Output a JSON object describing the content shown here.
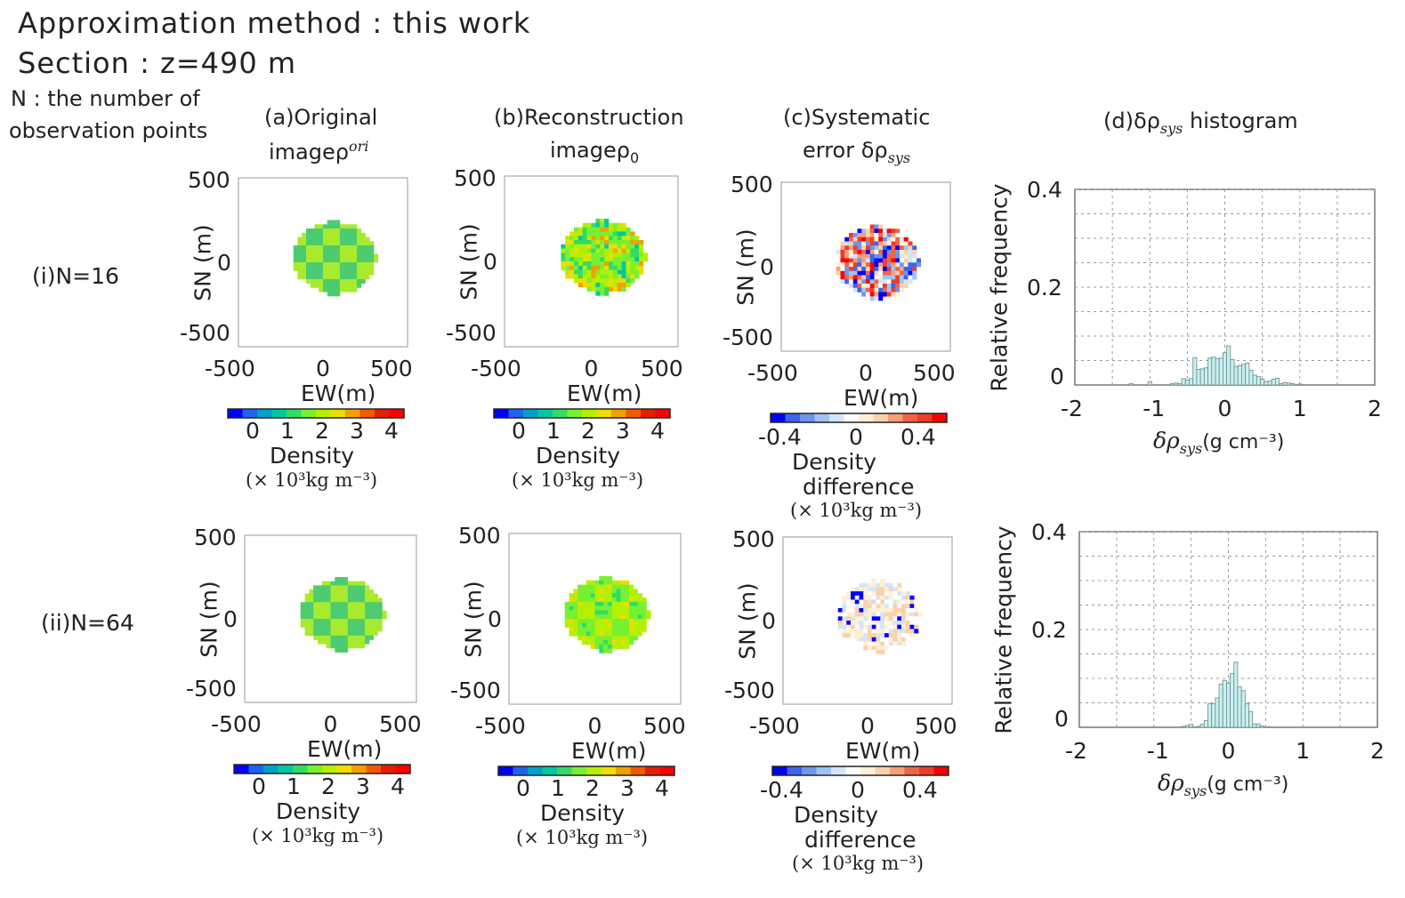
{
  "header": {
    "line1": "Approximation method :  this work",
    "line2": "Section : z=490 m",
    "n_note_1": "N :  the number of",
    "n_note_2": "observation points"
  },
  "columns": {
    "a_1": "(a)Original",
    "a_2": "imageρ",
    "a_sup": "ori",
    "b_1": "(b)Reconstruction",
    "b_2": "imageρ",
    "b_sub": "0",
    "c_1": "(c)Systematic",
    "c_2": "error δρ",
    "c_sub": "sys",
    "d_1": "(d)δρ",
    "d_sub": "sys",
    "d_2": " histogram"
  },
  "rows": [
    "(i)N=16",
    "(ii)N=64"
  ],
  "map_axes": {
    "ylabel": "SN (m)",
    "xlabel": "EW(m)",
    "ticks": [
      "-500",
      "0",
      "500"
    ]
  },
  "colorbars": {
    "density": {
      "ticks": [
        "0",
        "1",
        "2",
        "3",
        "4"
      ],
      "label": "Density",
      "unit": "(× 10³kg  m⁻³)",
      "colors": [
        "#0000ff",
        "#1e64f0",
        "#00a0c8",
        "#00c8a0",
        "#32dc64",
        "#78f032",
        "#b4f000",
        "#f0dc00",
        "#f0a000",
        "#f05a00",
        "#e61e00",
        "#ff0000"
      ]
    },
    "difference": {
      "ticks": [
        "-0.4",
        "0",
        "0.4"
      ],
      "label_1": "Density",
      "label_2": "difference",
      "unit": "(× 10³kg  m⁻³)",
      "colors": [
        "#0000ff",
        "#3c64f0",
        "#6e96f0",
        "#a0c3f5",
        "#d2e6fa",
        "#ffffff",
        "#fff0d2",
        "#fad2aa",
        "#f5a078",
        "#f06446",
        "#f03c28",
        "#ff0000"
      ]
    }
  },
  "chart_data": [
    {
      "type": "bar",
      "title": "(d)δρsys histogram (i)N=16",
      "xlabel": "δρsys(g cm⁻³)",
      "ylabel": "Relative frequency",
      "xlim": [
        -2,
        2
      ],
      "ylim": [
        0,
        0.4
      ],
      "xticks": [
        "-2",
        "-1",
        "0",
        "1",
        "2"
      ],
      "yticks": [
        "0",
        "0.2",
        "0.4"
      ],
      "grid": true,
      "bin_width": 0.05,
      "x": [
        -1.25,
        -1.0,
        -0.7,
        -0.65,
        -0.6,
        -0.55,
        -0.5,
        -0.45,
        -0.4,
        -0.35,
        -0.3,
        -0.25,
        -0.2,
        -0.15,
        -0.1,
        -0.05,
        0,
        0.05,
        0.1,
        0.15,
        0.2,
        0.25,
        0.3,
        0.35,
        0.4,
        0.45,
        0.5,
        0.55,
        0.6,
        0.65,
        0.7,
        0.75,
        0.8,
        0.85,
        0.9,
        1.0
      ],
      "values": [
        0.003,
        0.007,
        0.003,
        0.004,
        0.003,
        0.013,
        0.01,
        0.013,
        0.056,
        0.032,
        0.033,
        0.035,
        0.055,
        0.057,
        0.054,
        0.055,
        0.066,
        0.08,
        0.052,
        0.038,
        0.04,
        0.042,
        0.045,
        0.03,
        0.02,
        0.017,
        0.012,
        0.007,
        0.008,
        0.012,
        0.014,
        0.003,
        0.005,
        0.004,
        0.003,
        0.002
      ]
    },
    {
      "type": "bar",
      "title": "(d)δρsys histogram (ii)N=64",
      "xlabel": "δρsys(g cm⁻³)",
      "ylabel": "Relative frequency",
      "xlim": [
        -2,
        2
      ],
      "ylim": [
        0,
        0.4
      ],
      "xticks": [
        "-2",
        "-1",
        "0",
        "1",
        "2"
      ],
      "yticks": [
        "0",
        "0.2",
        "0.4"
      ],
      "grid": true,
      "bin_width": 0.05,
      "x": [
        -0.6,
        -0.55,
        -0.5,
        -0.4,
        -0.35,
        -0.3,
        -0.25,
        -0.2,
        -0.15,
        -0.1,
        -0.05,
        0,
        0.05,
        0.1,
        0.15,
        0.2,
        0.25,
        0.3,
        0.35,
        0.4,
        0.45,
        0.55
      ],
      "values": [
        0.002,
        0.004,
        0.006,
        0.002,
        0.006,
        0.014,
        0.048,
        0.048,
        0.06,
        0.088,
        0.096,
        0.09,
        0.11,
        0.133,
        0.083,
        0.075,
        0.048,
        0.032,
        0.007,
        0.007,
        0.003,
        0.001
      ]
    }
  ]
}
